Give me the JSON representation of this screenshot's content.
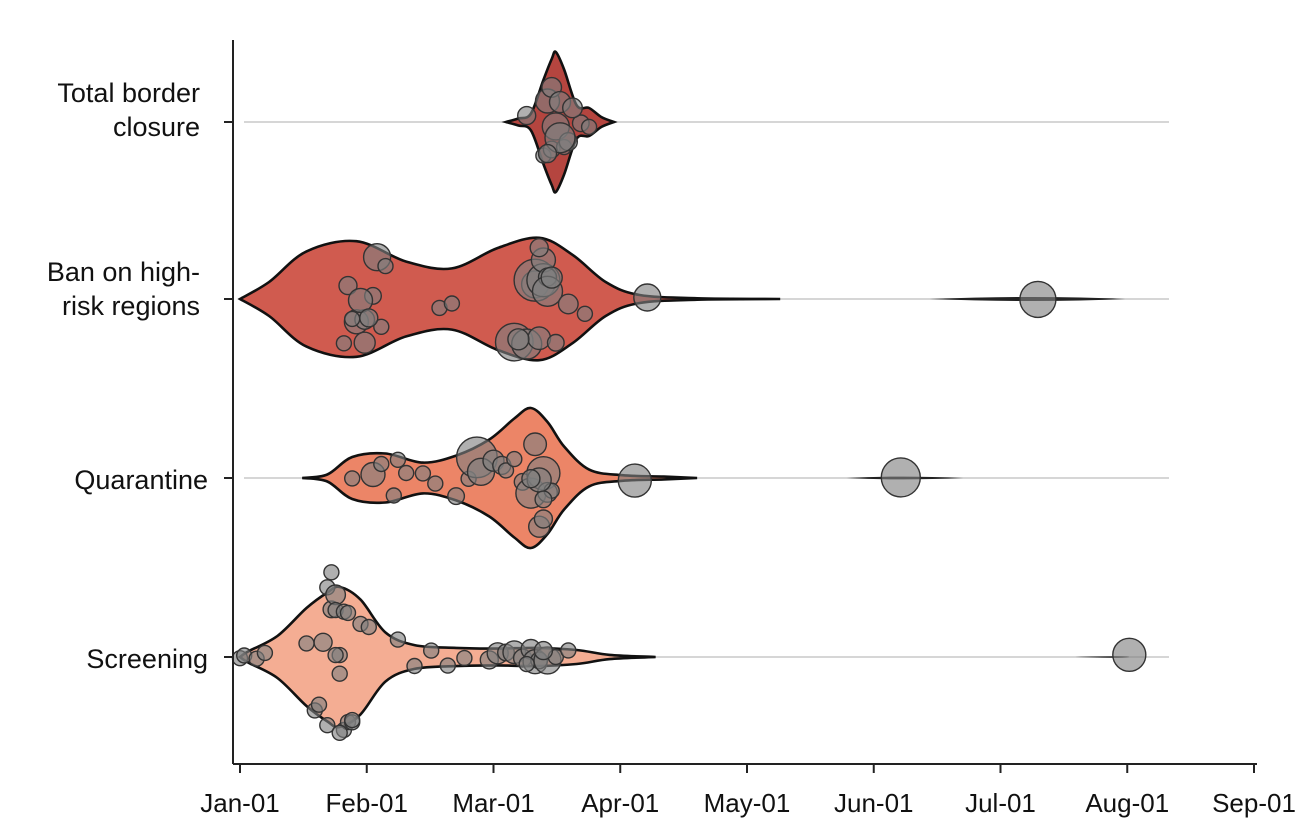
{
  "chart_data": {
    "type": "violin",
    "title": "",
    "xlabel": "",
    "ylabel": "",
    "x_ticks": [
      "Jan-01",
      "Feb-01",
      "Mar-01",
      "Apr-01",
      "May-01",
      "Jun-01",
      "Jul-01",
      "Aug-01",
      "Sep-01"
    ],
    "xlim": [
      "2020-01-01",
      "2020-09-01"
    ],
    "grid": false,
    "legend": "none",
    "colors": {
      "Total border closure": "#b5453f",
      "Ban on high-risk regions": "#d05b4f",
      "Quarantine": "#ec8567",
      "Screening": "#f4ad93",
      "points": "#808080"
    },
    "series": [
      {
        "name": "Total border closure",
        "x_range": [
          "2020-03-05",
          "2020-03-31"
        ],
        "density": [
          [
            "2020-03-05",
            0.0
          ],
          [
            "2020-03-08",
            0.05
          ],
          [
            "2020-03-11",
            0.12
          ],
          [
            "2020-03-14",
            0.6
          ],
          [
            "2020-03-16",
            0.9
          ],
          [
            "2020-03-17",
            1.0
          ],
          [
            "2020-03-19",
            0.75
          ],
          [
            "2020-03-22",
            0.24
          ],
          [
            "2020-03-25",
            0.2
          ],
          [
            "2020-03-28",
            0.07
          ],
          [
            "2020-03-31",
            0.0
          ]
        ],
        "points": [
          {
            "date": "2020-03-10",
            "size": 1.2
          },
          {
            "date": "2020-03-14",
            "size": 1.0
          },
          {
            "date": "2020-03-15",
            "size": 1.6
          },
          {
            "date": "2020-03-16",
            "size": 1.3
          },
          {
            "date": "2020-03-16",
            "size": 1.1
          },
          {
            "date": "2020-03-17",
            "size": 1.8
          },
          {
            "date": "2020-03-18",
            "size": 1.4
          },
          {
            "date": "2020-03-19",
            "size": 1.0
          },
          {
            "date": "2020-03-20",
            "size": 1.2
          },
          {
            "date": "2020-03-23",
            "size": 1.1
          },
          {
            "date": "2020-03-25",
            "size": 1.0
          },
          {
            "date": "2020-03-18",
            "size": 2.0
          },
          {
            "date": "2020-03-15",
            "size": 1.2
          },
          {
            "date": "2020-03-21",
            "size": 1.3
          }
        ]
      },
      {
        "name": "Ban on high-risk regions",
        "x_range": [
          "2020-01-01",
          "2020-08-01"
        ],
        "density": [
          [
            "2020-01-01",
            0.0
          ],
          [
            "2020-01-08",
            0.25
          ],
          [
            "2020-01-17",
            0.7
          ],
          [
            "2020-01-29",
            0.85
          ],
          [
            "2020-02-10",
            0.55
          ],
          [
            "2020-02-21",
            0.45
          ],
          [
            "2020-03-03",
            0.75
          ],
          [
            "2020-03-13",
            0.9
          ],
          [
            "2020-03-21",
            0.65
          ],
          [
            "2020-03-29",
            0.25
          ],
          [
            "2020-04-06",
            0.06
          ],
          [
            "2020-04-20",
            0.01
          ],
          [
            "2020-05-10",
            0.0
          ]
        ],
        "tail": {
          "from": "2020-06-15",
          "to": "2020-08-01",
          "peak": "2020-07-11",
          "width": 0.06
        },
        "points": [
          {
            "date": "2020-01-27",
            "size": 1.2
          },
          {
            "date": "2020-01-29",
            "size": 1.6
          },
          {
            "date": "2020-01-31",
            "size": 1.3
          },
          {
            "date": "2020-02-03",
            "size": 1.8
          },
          {
            "date": "2020-01-28",
            "size": 1.0
          },
          {
            "date": "2020-02-02",
            "size": 1.1
          },
          {
            "date": "2020-01-26",
            "size": 1.0
          },
          {
            "date": "2020-02-04",
            "size": 1.0
          },
          {
            "date": "2020-02-05",
            "size": 1.0
          },
          {
            "date": "2020-01-30",
            "size": 1.6
          },
          {
            "date": "2020-01-31",
            "size": 1.4
          },
          {
            "date": "2020-02-01",
            "size": 1.2
          },
          {
            "date": "2020-02-18",
            "size": 1.0
          },
          {
            "date": "2020-02-21",
            "size": 1.0
          },
          {
            "date": "2020-03-07",
            "size": 2.5
          },
          {
            "date": "2020-03-10",
            "size": 2.0
          },
          {
            "date": "2020-03-12",
            "size": 1.8
          },
          {
            "date": "2020-03-12",
            "size": 2.8
          },
          {
            "date": "2020-03-13",
            "size": 1.5
          },
          {
            "date": "2020-03-14",
            "size": 2.2
          },
          {
            "date": "2020-03-14",
            "size": 1.6
          },
          {
            "date": "2020-03-15",
            "size": 1.2
          },
          {
            "date": "2020-03-15",
            "size": 2.0
          },
          {
            "date": "2020-03-16",
            "size": 1.4
          },
          {
            "date": "2020-03-17",
            "size": 1.1
          },
          {
            "date": "2020-03-20",
            "size": 1.3
          },
          {
            "date": "2020-03-24",
            "size": 1.0
          },
          {
            "date": "2020-03-08",
            "size": 1.4
          },
          {
            "date": "2020-03-13",
            "size": 1.2
          },
          {
            "date": "2020-04-08",
            "size": 1.8
          },
          {
            "date": "2020-07-11",
            "size": 2.4
          }
        ]
      },
      {
        "name": "Quarantine",
        "x_range": [
          "2020-01-16",
          "2020-04-20"
        ],
        "density": [
          [
            "2020-01-16",
            0.0
          ],
          [
            "2020-01-22",
            0.05
          ],
          [
            "2020-01-28",
            0.3
          ],
          [
            "2020-02-05",
            0.35
          ],
          [
            "2020-02-14",
            0.22
          ],
          [
            "2020-02-22",
            0.32
          ],
          [
            "2020-03-01",
            0.55
          ],
          [
            "2020-03-07",
            0.85
          ],
          [
            "2020-03-11",
            1.0
          ],
          [
            "2020-03-15",
            0.8
          ],
          [
            "2020-03-19",
            0.45
          ],
          [
            "2020-03-25",
            0.12
          ],
          [
            "2020-04-02",
            0.04
          ],
          [
            "2020-04-12",
            0.02
          ],
          [
            "2020-04-20",
            0.0
          ]
        ],
        "tail": {
          "from": "2020-05-26",
          "to": "2020-06-23",
          "peak": "2020-06-08",
          "width": 0.04
        },
        "points": [
          {
            "date": "2020-01-28",
            "size": 1.0
          },
          {
            "date": "2020-02-02",
            "size": 1.6
          },
          {
            "date": "2020-02-04",
            "size": 1.0
          },
          {
            "date": "2020-02-07",
            "size": 1.0
          },
          {
            "date": "2020-02-08",
            "size": 1.0
          },
          {
            "date": "2020-02-10",
            "size": 1.0
          },
          {
            "date": "2020-02-14",
            "size": 1.0
          },
          {
            "date": "2020-02-17",
            "size": 1.0
          },
          {
            "date": "2020-02-22",
            "size": 1.1
          },
          {
            "date": "2020-02-25",
            "size": 1.0
          },
          {
            "date": "2020-02-27",
            "size": 2.7
          },
          {
            "date": "2020-02-28",
            "size": 1.8
          },
          {
            "date": "2020-03-02",
            "size": 1.4
          },
          {
            "date": "2020-03-04",
            "size": 1.2
          },
          {
            "date": "2020-03-05",
            "size": 1.0
          },
          {
            "date": "2020-03-07",
            "size": 1.0
          },
          {
            "date": "2020-03-09",
            "size": 1.1
          },
          {
            "date": "2020-03-11",
            "size": 2.0
          },
          {
            "date": "2020-03-12",
            "size": 1.5
          },
          {
            "date": "2020-03-13",
            "size": 1.4
          },
          {
            "date": "2020-03-14",
            "size": 2.2
          },
          {
            "date": "2020-03-14",
            "size": 1.2
          },
          {
            "date": "2020-03-15",
            "size": 1.3
          },
          {
            "date": "2020-03-16",
            "size": 1.0
          },
          {
            "date": "2020-03-13",
            "size": 1.6
          },
          {
            "date": "2020-03-11",
            "size": 1.2
          },
          {
            "date": "2020-03-14",
            "size": 1.1
          },
          {
            "date": "2020-04-05",
            "size": 2.2
          },
          {
            "date": "2020-06-08",
            "size": 2.6
          }
        ]
      },
      {
        "name": "Screening",
        "x_range": [
          "2020-01-01",
          "2020-04-10"
        ],
        "density": [
          [
            "2020-01-01",
            0.0
          ],
          [
            "2020-01-03",
            0.08
          ],
          [
            "2020-01-10",
            0.3
          ],
          [
            "2020-01-17",
            0.7
          ],
          [
            "2020-01-22",
            0.92
          ],
          [
            "2020-01-25",
            1.0
          ],
          [
            "2020-01-30",
            0.82
          ],
          [
            "2020-02-05",
            0.35
          ],
          [
            "2020-02-12",
            0.17
          ],
          [
            "2020-02-22",
            0.13
          ],
          [
            "2020-03-03",
            0.12
          ],
          [
            "2020-03-12",
            0.13
          ],
          [
            "2020-03-22",
            0.1
          ],
          [
            "2020-03-30",
            0.03
          ],
          [
            "2020-04-10",
            0.0
          ]
        ],
        "tail": {
          "from": "2020-07-20",
          "to": "2020-08-02",
          "peak": "2020-08-01",
          "width": 0.02
        },
        "points": [
          {
            "date": "2020-01-01",
            "size": 1.0
          },
          {
            "date": "2020-01-02",
            "size": 1.0
          },
          {
            "date": "2020-01-05",
            "size": 1.0
          },
          {
            "date": "2020-01-07",
            "size": 1.0
          },
          {
            "date": "2020-01-17",
            "size": 1.0
          },
          {
            "date": "2020-01-19",
            "size": 1.0
          },
          {
            "date": "2020-01-20",
            "size": 1.0
          },
          {
            "date": "2020-01-21",
            "size": 1.2
          },
          {
            "date": "2020-01-22",
            "size": 1.0
          },
          {
            "date": "2020-01-23",
            "size": 1.1
          },
          {
            "date": "2020-01-24",
            "size": 1.3
          },
          {
            "date": "2020-01-25",
            "size": 1.0
          },
          {
            "date": "2020-01-26",
            "size": 1.0
          },
          {
            "date": "2020-01-27",
            "size": 1.0
          },
          {
            "date": "2020-01-28",
            "size": 1.0
          },
          {
            "date": "2020-01-30",
            "size": 1.0
          },
          {
            "date": "2020-02-01",
            "size": 1.0
          },
          {
            "date": "2020-01-23",
            "size": 1.0
          },
          {
            "date": "2020-01-24",
            "size": 1.0
          },
          {
            "date": "2020-01-25",
            "size": 1.0
          },
          {
            "date": "2020-01-26",
            "size": 1.0
          },
          {
            "date": "2020-01-27",
            "size": 1.0
          },
          {
            "date": "2020-01-28",
            "size": 1.0
          },
          {
            "date": "2020-01-24",
            "size": 1.0
          },
          {
            "date": "2020-01-22",
            "size": 1.0
          },
          {
            "date": "2020-01-25",
            "size": 1.0
          },
          {
            "date": "2020-02-08",
            "size": 1.0
          },
          {
            "date": "2020-02-12",
            "size": 1.0
          },
          {
            "date": "2020-02-16",
            "size": 1.0
          },
          {
            "date": "2020-02-20",
            "size": 1.0
          },
          {
            "date": "2020-02-24",
            "size": 1.0
          },
          {
            "date": "2020-03-01",
            "size": 1.2
          },
          {
            "date": "2020-03-03",
            "size": 1.4
          },
          {
            "date": "2020-03-05",
            "size": 1.1
          },
          {
            "date": "2020-03-07",
            "size": 1.5
          },
          {
            "date": "2020-03-09",
            "size": 1.2
          },
          {
            "date": "2020-03-11",
            "size": 1.3
          },
          {
            "date": "2020-03-12",
            "size": 1.6
          },
          {
            "date": "2020-03-13",
            "size": 1.1
          },
          {
            "date": "2020-03-15",
            "size": 1.8
          },
          {
            "date": "2020-03-17",
            "size": 1.0
          },
          {
            "date": "2020-03-20",
            "size": 1.0
          },
          {
            "date": "2020-03-14",
            "size": 1.2
          },
          {
            "date": "2020-03-10",
            "size": 1.0
          },
          {
            "date": "2020-08-02",
            "size": 2.2
          }
        ]
      }
    ]
  }
}
